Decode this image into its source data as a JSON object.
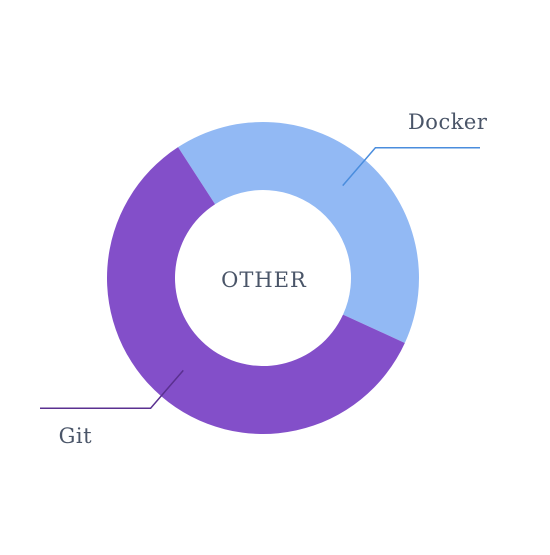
{
  "chart_data": {
    "type": "pie",
    "variant": "donut",
    "center_label": "OTHER",
    "categories": [
      "Docker",
      "Git"
    ],
    "values": [
      41,
      59
    ],
    "colors": [
      "#92b9f4",
      "#834fc9"
    ],
    "leader_colors": [
      "#4a8ddd",
      "#5a3090"
    ],
    "legend": "none"
  }
}
